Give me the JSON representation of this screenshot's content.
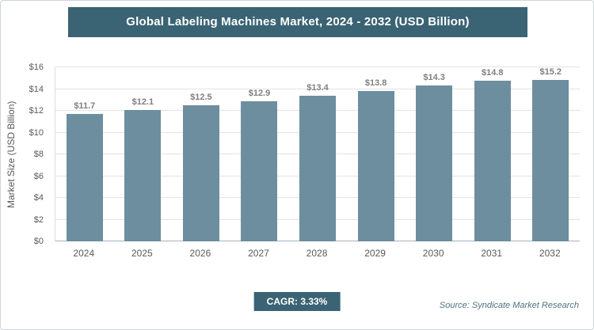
{
  "title": "Global Labeling Machines Market, 2024 - 2032 (USD Billion)",
  "chart_data": {
    "type": "bar",
    "title": "Global Labeling Machines Market, 2024 - 2032 (USD Billion)",
    "categories": [
      "2024",
      "2025",
      "2026",
      "2027",
      "2028",
      "2029",
      "2030",
      "2031",
      "2032"
    ],
    "values": [
      11.7,
      12.1,
      12.5,
      12.9,
      13.4,
      13.8,
      14.3,
      14.8,
      15.2
    ],
    "value_labels": [
      "$11.7",
      "$12.1",
      "$12.5",
      "$12.9",
      "$13.4",
      "$13.8",
      "$14.3",
      "$14.8",
      "$15.2"
    ],
    "xlabel": "",
    "ylabel": "Market Size (USD Billion)",
    "ylim": [
      0,
      16
    ],
    "ytick_step": 2,
    "ytick_labels": [
      "$0",
      "$2",
      "$4",
      "$6",
      "$8",
      "$10",
      "$12",
      "$14",
      "$16"
    ],
    "grid": true,
    "legend": "none",
    "colors": {
      "bar": "#6d8e9e",
      "header_background": "#3a6374",
      "header_text": "#ffffff",
      "value_label_text": "#7f7f7f",
      "axis_text": "#595959"
    }
  },
  "footer": {
    "cagr_label": "CAGR: 3.33%",
    "source": "Source: Syndicate Market Research"
  }
}
